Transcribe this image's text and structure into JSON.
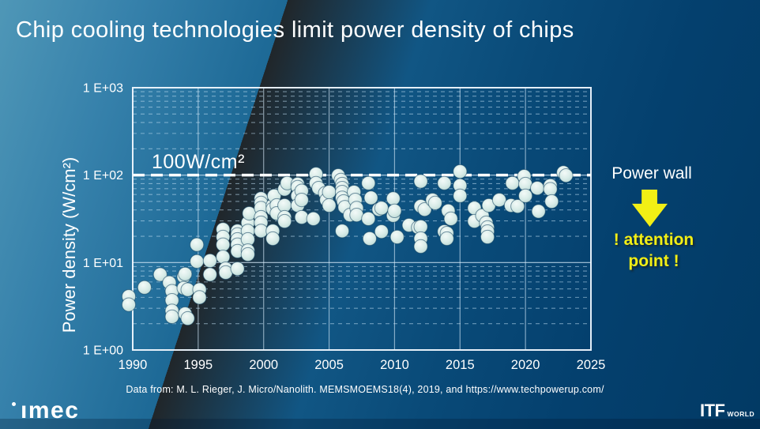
{
  "slide": {
    "title": "Chip cooling technologies limit power density of chips",
    "caption": "Data from: M. L. Rieger, J. Micro/Nanolith. MEMSMOEMS18(4), 2019, and https://www.techpowerup.com/",
    "footer": {
      "imec_dot": ".",
      "imec_logo": "ımec",
      "itf": "ITF",
      "world": "WORLD"
    }
  },
  "annotations": {
    "power_wall": "Power wall",
    "attention_line1": "! attention",
    "attention_line2": "point !",
    "accent_yellow": "#f2ef15"
  },
  "chart_data": {
    "type": "scatter",
    "title": "",
    "xlabel": "",
    "ylabel": "Power density (W/cm²)",
    "xlim": [
      1990,
      2025
    ],
    "ylim": [
      1,
      1000
    ],
    "y_scale": "log",
    "grid": "major solid, log minors dashed, verticals every 5 years",
    "x_ticks": [
      "1990",
      "1995",
      "2000",
      "2005",
      "2010",
      "2015",
      "2020",
      "2025"
    ],
    "y_ticks": [
      {
        "label": "1 E+00",
        "value": 1
      },
      {
        "label": "1 E+01",
        "value": 10
      },
      {
        "label": "1 E+02",
        "value": 100
      },
      {
        "label": "1 E+03",
        "value": 1000
      }
    ],
    "threshold": {
      "value": 100,
      "label": "100W/cm²"
    },
    "point_color": "#d9ece8",
    "points": [
      [
        1989.7,
        4.1
      ],
      [
        1989.7,
        3.3
      ],
      [
        1990.9,
        5.2
      ],
      [
        1992.1,
        7.3
      ],
      [
        1992.8,
        5.9
      ],
      [
        1993.0,
        4.7
      ],
      [
        1993.0,
        3.7
      ],
      [
        1993.0,
        2.8
      ],
      [
        1993.0,
        2.4
      ],
      [
        1993.9,
        6.9
      ],
      [
        1993.9,
        5.1
      ],
      [
        1994.0,
        7.4
      ],
      [
        1994.0,
        2.6
      ],
      [
        1994.2,
        4.9
      ],
      [
        1994.2,
        2.3
      ],
      [
        1994.9,
        16
      ],
      [
        1994.9,
        10.3
      ],
      [
        1995.1,
        4.9
      ],
      [
        1995.1,
        4.0
      ],
      [
        1995.9,
        10.5
      ],
      [
        1995.9,
        7.3
      ],
      [
        1996.9,
        24
      ],
      [
        1996.9,
        19.6
      ],
      [
        1996.9,
        16
      ],
      [
        1996.9,
        11.6
      ],
      [
        1997.1,
        8.5
      ],
      [
        1997.1,
        7.7
      ],
      [
        1998.0,
        23
      ],
      [
        1998.0,
        21
      ],
      [
        1998.0,
        18.4
      ],
      [
        1998.0,
        16
      ],
      [
        1998.0,
        13.5
      ],
      [
        1998.0,
        8.5
      ],
      [
        1998.8,
        28.5
      ],
      [
        1998.8,
        23
      ],
      [
        1998.8,
        18.4
      ],
      [
        1998.8,
        13.7
      ],
      [
        1998.8,
        12.4
      ],
      [
        1998.9,
        36.5
      ],
      [
        1999.8,
        54
      ],
      [
        1999.8,
        48
      ],
      [
        1999.8,
        42
      ],
      [
        1999.8,
        33
      ],
      [
        1999.8,
        28.5
      ],
      [
        1999.8,
        23
      ],
      [
        2000.7,
        45
      ],
      [
        2000.7,
        41
      ],
      [
        2000.7,
        23
      ],
      [
        2000.7,
        18.8
      ],
      [
        2000.8,
        58
      ],
      [
        2001.0,
        45
      ],
      [
        2001.0,
        36.5
      ],
      [
        2001.6,
        69
      ],
      [
        2001.6,
        45
      ],
      [
        2001.6,
        33
      ],
      [
        2001.6,
        29.7
      ],
      [
        2001.8,
        81
      ],
      [
        2002.6,
        79
      ],
      [
        2002.6,
        73
      ],
      [
        2002.6,
        58
      ],
      [
        2002.6,
        45
      ],
      [
        2002.9,
        66
      ],
      [
        2002.9,
        52
      ],
      [
        2002.9,
        33
      ],
      [
        2003.8,
        31.7
      ],
      [
        2004.0,
        103
      ],
      [
        2004.0,
        81
      ],
      [
        2004.2,
        71
      ],
      [
        2004.7,
        62
      ],
      [
        2004.8,
        52
      ],
      [
        2005.0,
        64
      ],
      [
        2005.0,
        45
      ],
      [
        2005.7,
        99
      ],
      [
        2005.9,
        88
      ],
      [
        2006.0,
        79
      ],
      [
        2006.0,
        71
      ],
      [
        2006.0,
        64
      ],
      [
        2006.0,
        55
      ],
      [
        2006.1,
        50
      ],
      [
        2006.2,
        43
      ],
      [
        2006.0,
        23
      ],
      [
        2006.6,
        35
      ],
      [
        2006.9,
        64
      ],
      [
        2007.0,
        52
      ],
      [
        2007.1,
        42
      ],
      [
        2007.1,
        35
      ],
      [
        2008.0,
        81
      ],
      [
        2008.0,
        31.7
      ],
      [
        2008.2,
        55
      ],
      [
        2008.8,
        40.5
      ],
      [
        2008.1,
        18.8
      ],
      [
        2009.0,
        42
      ],
      [
        2009.0,
        22.6
      ],
      [
        2009.9,
        54
      ],
      [
        2009.9,
        34.5
      ],
      [
        2010.0,
        39
      ],
      [
        2010.2,
        19.6
      ],
      [
        2011.1,
        26.8
      ],
      [
        2011.8,
        25.2
      ],
      [
        2012.0,
        85
      ],
      [
        2012.0,
        44
      ],
      [
        2012.0,
        25.7
      ],
      [
        2012.0,
        18.8
      ],
      [
        2012.0,
        15.3
      ],
      [
        2012.3,
        40.5
      ],
      [
        2012.9,
        52
      ],
      [
        2013.1,
        48
      ],
      [
        2013.8,
        81
      ],
      [
        2013.8,
        22.6
      ],
      [
        2014.0,
        21.7
      ],
      [
        2014.0,
        18.8
      ],
      [
        2014.1,
        39
      ],
      [
        2014.3,
        31.7
      ],
      [
        2015.0,
        110
      ],
      [
        2015.0,
        76
      ],
      [
        2015.0,
        58
      ],
      [
        2016.1,
        42
      ],
      [
        2016.1,
        29.7
      ],
      [
        2016.7,
        34.5
      ],
      [
        2017.0,
        28.5
      ],
      [
        2017.1,
        25.2
      ],
      [
        2017.1,
        22.6
      ],
      [
        2017.1,
        19.6
      ],
      [
        2017.2,
        45
      ],
      [
        2018.0,
        52
      ],
      [
        2018.9,
        45
      ],
      [
        2019.0,
        81
      ],
      [
        2019.4,
        44
      ],
      [
        2019.9,
        97
      ],
      [
        2020.0,
        79
      ],
      [
        2020.0,
        58
      ],
      [
        2020.9,
        71
      ],
      [
        2021.0,
        38.5
      ],
      [
        2021.9,
        76
      ],
      [
        2021.9,
        69
      ],
      [
        2022.0,
        50
      ],
      [
        2022.9,
        107
      ],
      [
        2023.1,
        99
      ]
    ]
  }
}
